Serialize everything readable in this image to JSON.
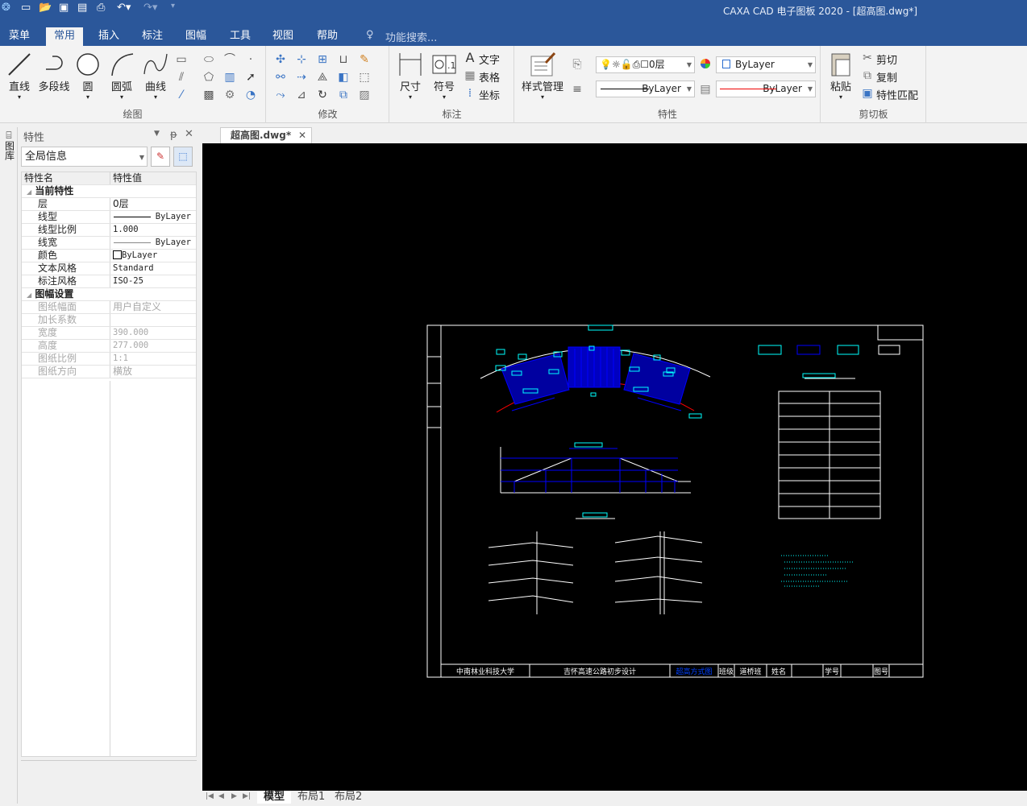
{
  "app": {
    "title": "CAXA CAD 电子图板 2020 - [超高图.dwg*]"
  },
  "quick_access": [
    "app-logo-icon",
    "new-icon",
    "open-icon",
    "save-icon",
    "save-as-icon",
    "print-icon",
    "undo-icon",
    "redo-icon",
    "customize-icon"
  ],
  "menu_tabs": [
    {
      "label": "菜单"
    },
    {
      "label": "常用",
      "active": true
    },
    {
      "label": "插入"
    },
    {
      "label": "标注"
    },
    {
      "label": "图幅"
    },
    {
      "label": "工具"
    },
    {
      "label": "视图"
    },
    {
      "label": "帮助"
    }
  ],
  "search": {
    "placeholder": "功能搜索..."
  },
  "ribbon": {
    "draw": {
      "label": "绘图",
      "items": [
        "直线",
        "多段线",
        "圆",
        "圆弧",
        "曲线"
      ]
    },
    "modify": {
      "label": "修改"
    },
    "annotate": {
      "label": "标注",
      "items": [
        "尺寸",
        "符号"
      ],
      "small": [
        "文字",
        "表格",
        "坐标"
      ]
    },
    "properties": {
      "label": "特性",
      "style_manager": "样式管理",
      "layer": "0层",
      "color": "ByLayer",
      "linetype": "ByLayer",
      "lineweight": "ByLayer"
    },
    "clipboard": {
      "label": "剪切板",
      "paste": "粘贴",
      "cut": "剪切",
      "copy": "复制",
      "match": "特性匹配"
    }
  },
  "side_strip": {
    "label": "图库"
  },
  "panel": {
    "title": "特性",
    "selector": "全局信息",
    "columns": [
      "特性名",
      "特性值"
    ],
    "sections": [
      {
        "name": "当前特性",
        "rows": [
          {
            "k": "层",
            "v": "0层"
          },
          {
            "k": "线型",
            "v": "ByLayer"
          },
          {
            "k": "线型比例",
            "v": "1.000"
          },
          {
            "k": "线宽",
            "v": "ByLayer"
          },
          {
            "k": "颜色",
            "v": "ByLayer"
          },
          {
            "k": "文本风格",
            "v": "Standard"
          },
          {
            "k": "标注风格",
            "v": "ISO-25"
          }
        ]
      },
      {
        "name": "图幅设置",
        "rows": [
          {
            "k": "图纸幅面",
            "v": "用户自定义"
          },
          {
            "k": "加长系数",
            "v": ""
          },
          {
            "k": "宽度",
            "v": "390.000"
          },
          {
            "k": "高度",
            "v": "277.000"
          },
          {
            "k": "图纸比例",
            "v": "1:1"
          },
          {
            "k": "图纸方向",
            "v": "横放"
          }
        ]
      }
    ]
  },
  "document_tab": {
    "label": "超高图.dwg*"
  },
  "drawing": {
    "title_block": [
      "中南林业科技大学",
      "吉怀高速公路初步设计",
      "超高方式图",
      "班级",
      "道桥班",
      "姓名",
      "学号",
      "图号"
    ],
    "colors": {
      "frame": "#ffffff",
      "text": "#00ffff",
      "hatch": "#0000ff",
      "red": "#ff0000"
    }
  },
  "layout_tabs": [
    {
      "label": "模型",
      "active": true
    },
    {
      "label": "布局1"
    },
    {
      "label": "布局2"
    }
  ]
}
